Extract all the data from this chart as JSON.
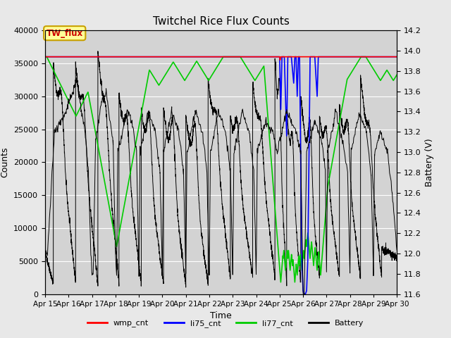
{
  "title": "Twitchel Rice Flux Counts",
  "xlabel": "Time",
  "ylabel_left": "Counts",
  "ylabel_right": "Battery (V)",
  "ylim_left": [
    0,
    40000
  ],
  "ylim_right": [
    11.6,
    14.2
  ],
  "x_ticks": [
    15,
    16,
    17,
    18,
    19,
    20,
    21,
    22,
    23,
    24,
    25,
    26,
    27,
    28,
    29,
    30
  ],
  "x_tick_labels": [
    "Apr 15",
    "Apr 16",
    "Apr 17",
    "Apr 18",
    "Apr 19",
    "Apr 20",
    "Apr 21",
    "Apr 22",
    "Apr 23",
    "Apr 24",
    "Apr 25",
    "Apr 26",
    "Apr 27",
    "Apr 28",
    "Apr 29",
    "Apr 30"
  ],
  "yticks_left": [
    0,
    5000,
    10000,
    15000,
    20000,
    25000,
    30000,
    35000,
    40000
  ],
  "yticks_right": [
    11.6,
    11.8,
    12.0,
    12.2,
    12.4,
    12.6,
    12.8,
    13.0,
    13.2,
    13.4,
    13.6,
    13.8,
    14.0,
    14.2
  ],
  "bg_color": "#e8e8e8",
  "plot_bg_color": "#d3d3d3",
  "grid_color": "#ffffff",
  "legend_label": "TW_flux",
  "legend_bg": "#ffff99",
  "legend_border": "#c8a000",
  "wmp_color": "#ff0000",
  "li75_color": "#0000ff",
  "li77_color": "#00cc00",
  "battery_color": "#000000",
  "figsize": [
    6.4,
    4.8
  ],
  "dpi": 100
}
